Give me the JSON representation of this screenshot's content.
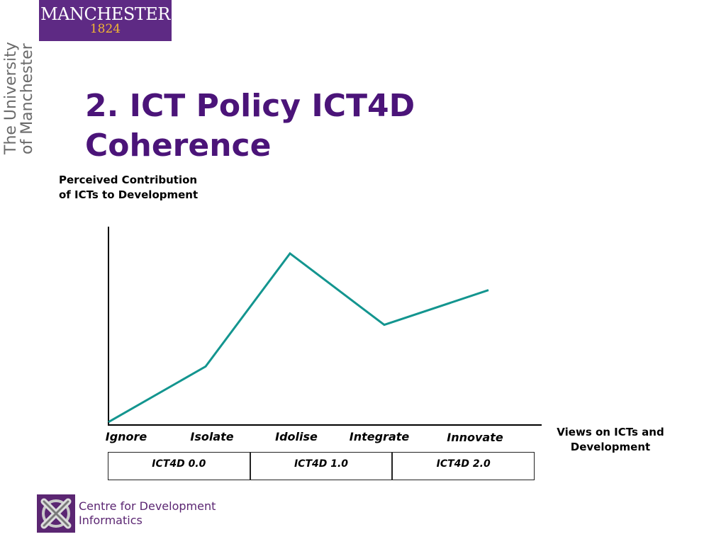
{
  "header": {
    "logo_name": "MANCHESTER",
    "logo_year": "1824",
    "side_text": "The University\nof Manchester",
    "colors": {
      "purple": "#5e2a84",
      "gold": "#f2b632",
      "title": "#4b1479"
    }
  },
  "slide": {
    "title": "2. ICT Policy ICT4D Coherence"
  },
  "chart_data": {
    "type": "line",
    "ylabel": "Perceived Contribution of ICTs to Development",
    "xlabel": "Views on ICTs and Development",
    "categories": [
      "Ignore",
      "Isolate",
      "Idolise",
      "Integrate",
      "Innovate"
    ],
    "values": [
      1.5,
      29.5,
      86.5,
      50.5,
      68
    ],
    "ylim": [
      0,
      100
    ],
    "grid": false,
    "line_color": "#13958f"
  },
  "phases": [
    "ICT4D 0.0",
    "ICT4D 1.0",
    "ICT4D 2.0"
  ],
  "footer": {
    "line1": "Centre for Development",
    "line2": "Informatics",
    "logo_icon": "cdi-cross-logo-icon"
  }
}
